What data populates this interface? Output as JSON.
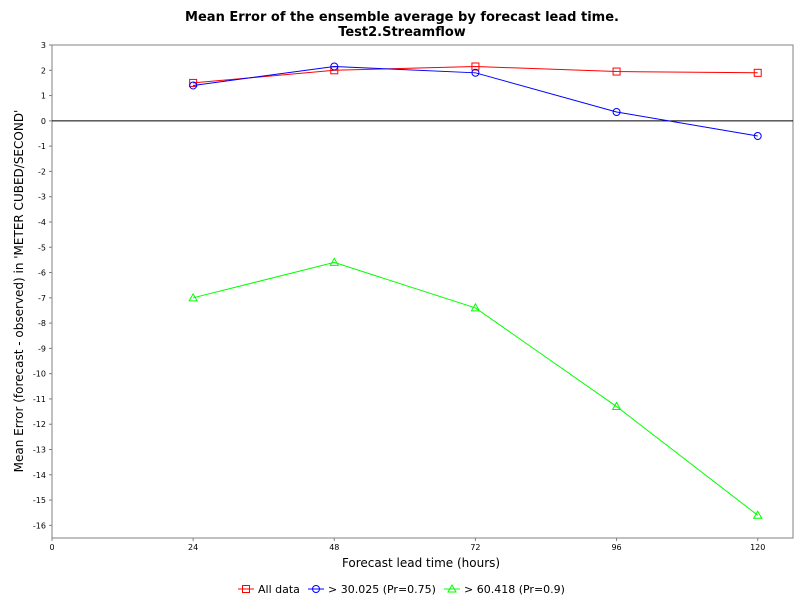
{
  "chart_data": {
    "type": "line",
    "title": "Mean Error of the ensemble average by forecast lead time.",
    "subtitle": "Test2.Streamflow",
    "xlabel": "Forecast lead time (hours)",
    "ylabel": "Mean Error (forecast - observed) in 'METER CUBED/SECOND'",
    "xlim": [
      0,
      126
    ],
    "ylim": [
      -16.5,
      3
    ],
    "x_ticks": [
      0,
      24,
      48,
      72,
      96,
      120
    ],
    "y_ticks": [
      3,
      2,
      1,
      0,
      -1,
      -2,
      -3,
      -4,
      -5,
      -6,
      -7,
      -8,
      -9,
      -10,
      -11,
      -12,
      -13,
      -14,
      -15,
      -16
    ],
    "zero_line": true,
    "grid": false,
    "legend_position": "bottom",
    "x": [
      24,
      48,
      72,
      96,
      120
    ],
    "series": [
      {
        "name": "All data",
        "color": "#ff0000",
        "marker": "square",
        "values": [
          1.5,
          2.0,
          2.15,
          1.95,
          1.9
        ]
      },
      {
        "name": "> 30.025 (Pr=0.75)",
        "color": "#0000ff",
        "marker": "circle",
        "values": [
          1.4,
          2.15,
          1.9,
          0.35,
          -0.6
        ]
      },
      {
        "name": "> 60.418 (Pr=0.9)",
        "color": "#00ff00",
        "marker": "triangle",
        "values": [
          -7.0,
          -5.6,
          -7.4,
          -11.3,
          -15.6
        ]
      }
    ]
  }
}
